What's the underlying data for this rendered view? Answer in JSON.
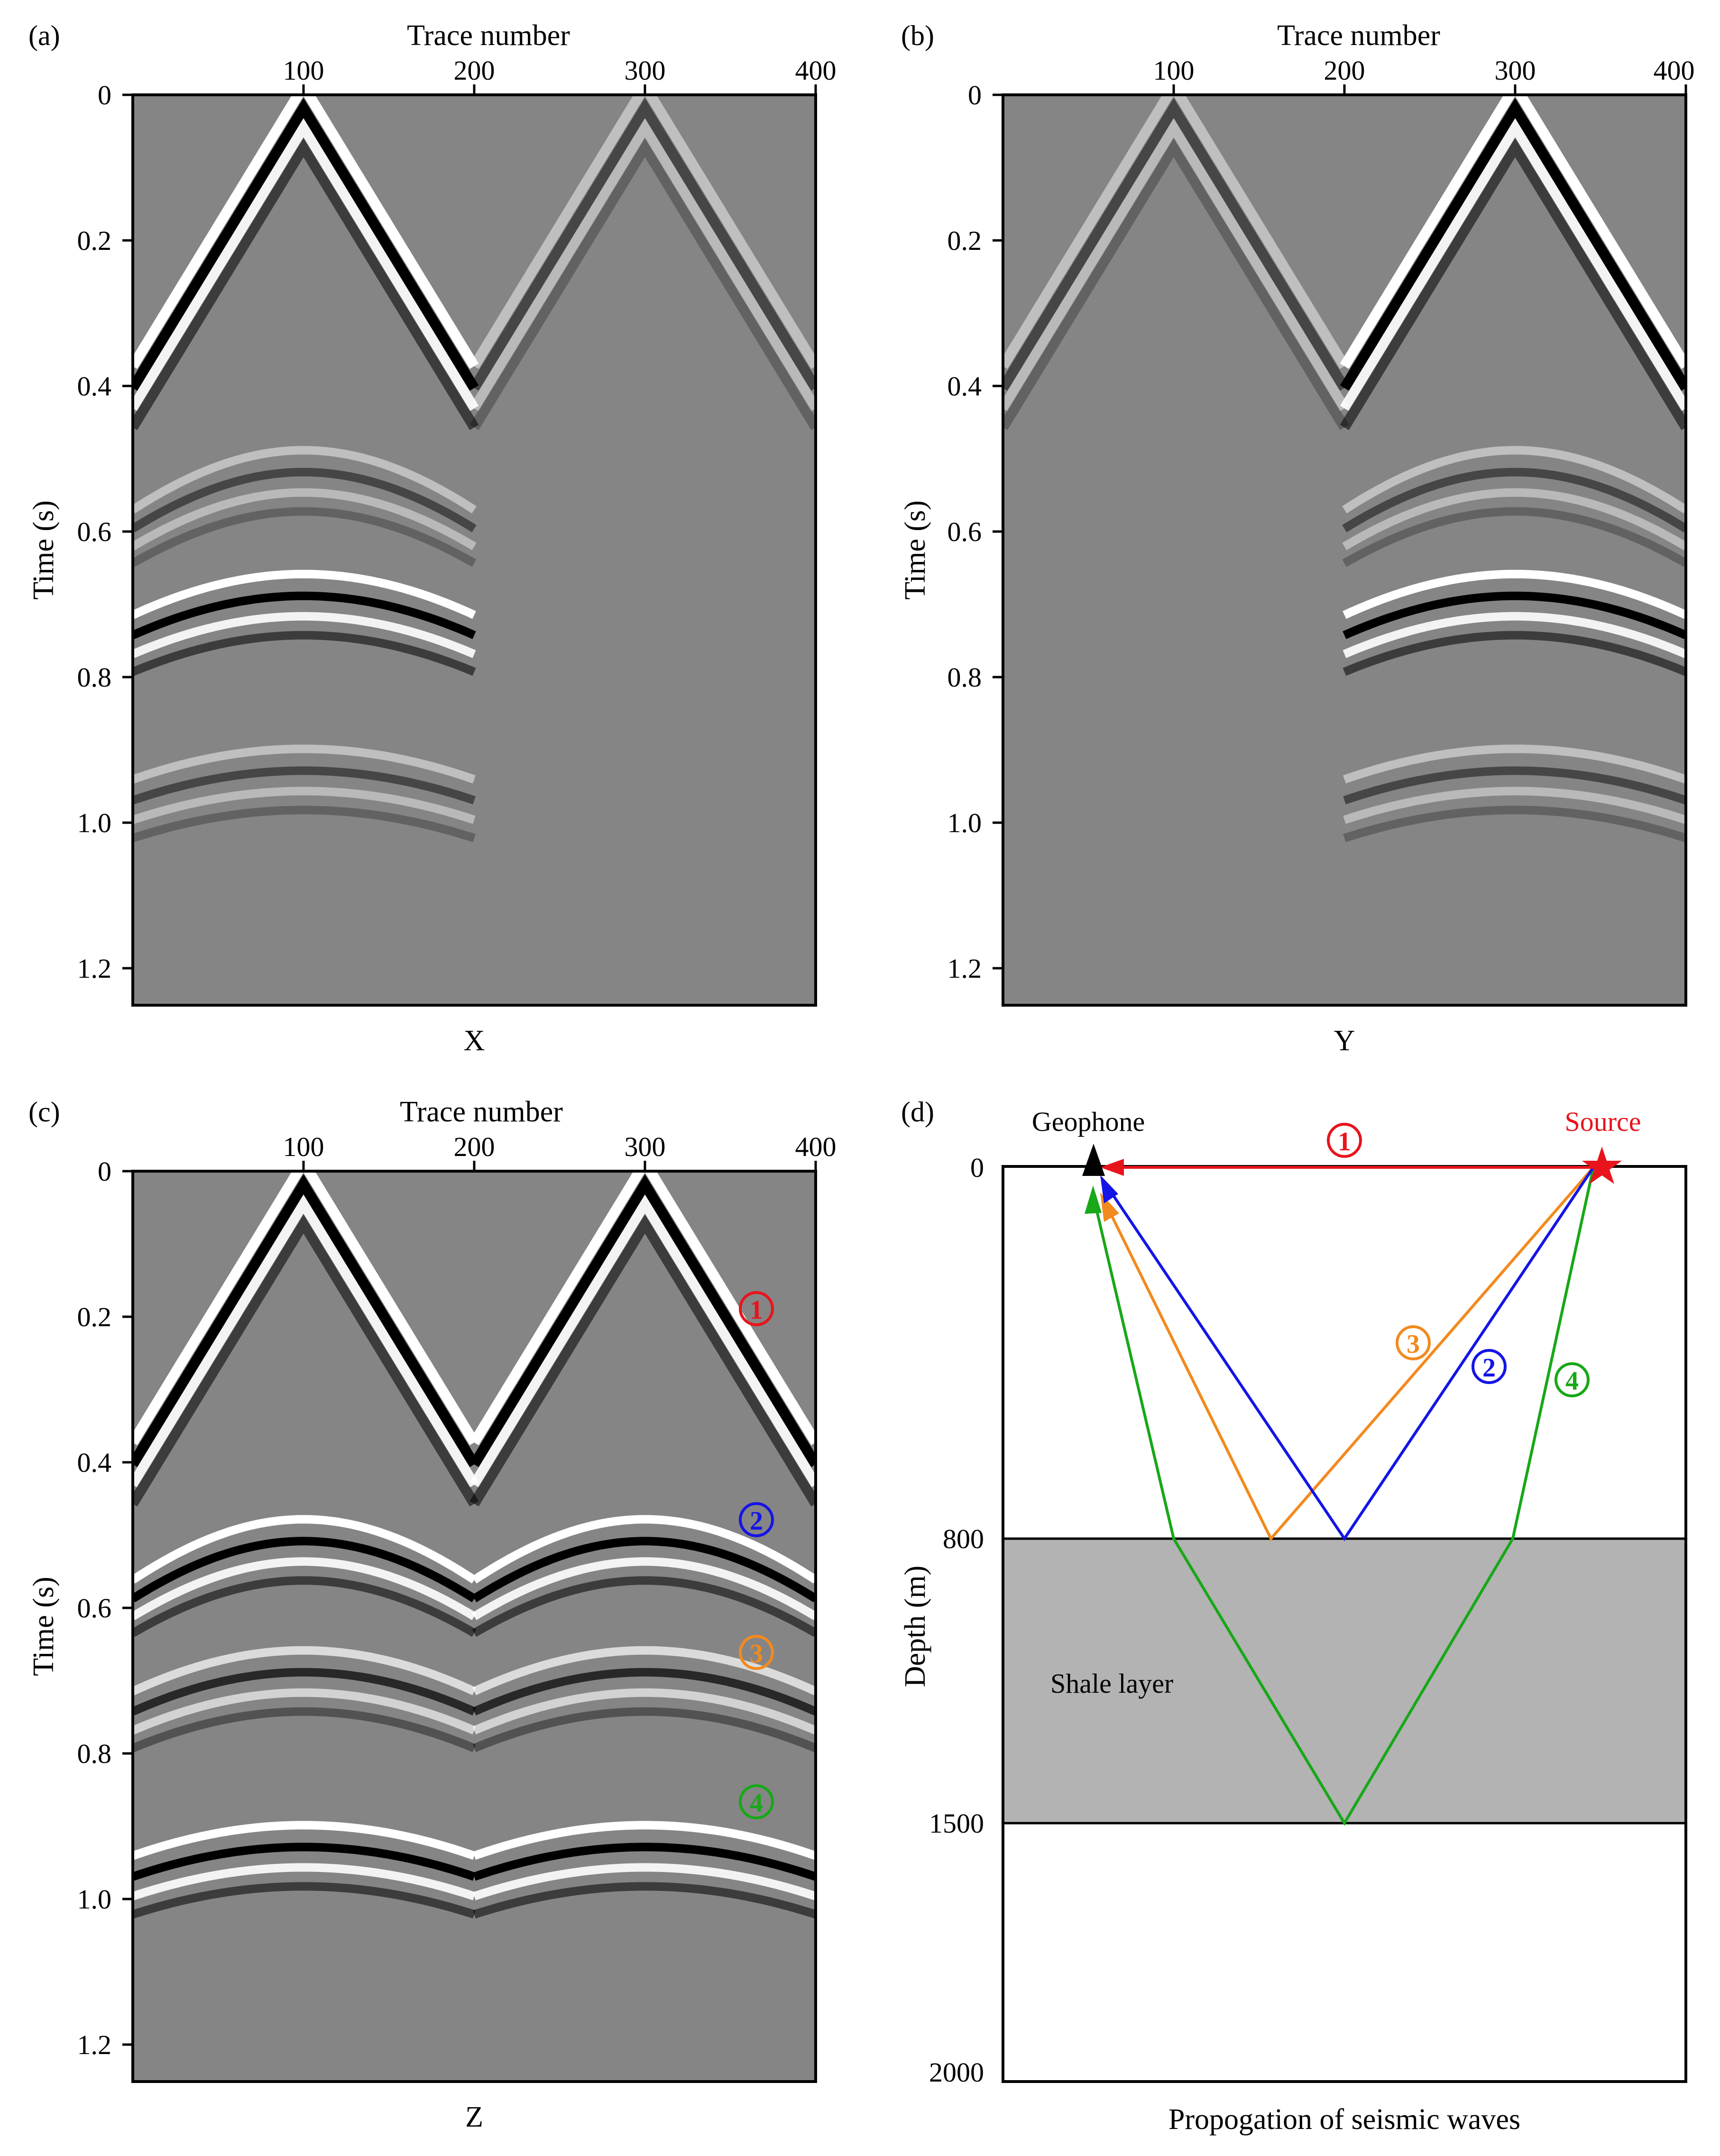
{
  "figure": {
    "panels": [
      {
        "id": "a",
        "label": "(a)",
        "top_axis_title": "Trace number",
        "x_ticks": [
          "100",
          "200",
          "300",
          "400"
        ],
        "y_label": "Time (s)",
        "y_ticks": [
          "0",
          "0.2",
          "0.4",
          "0.6",
          "0.8",
          "1.0",
          "1.2"
        ],
        "caption": "X"
      },
      {
        "id": "b",
        "label": "(b)",
        "top_axis_title": "Trace number",
        "x_ticks": [
          "100",
          "200",
          "300",
          "400"
        ],
        "y_label": "Time (s)",
        "y_ticks": [
          "0",
          "0.2",
          "0.4",
          "0.6",
          "0.8",
          "1.0",
          "1.2"
        ],
        "caption": "Y"
      },
      {
        "id": "c",
        "label": "(c)",
        "top_axis_title": "Trace number",
        "x_ticks": [
          "100",
          "200",
          "300",
          "400"
        ],
        "y_label": "Time (s)",
        "y_ticks": [
          "0",
          "0.2",
          "0.4",
          "0.6",
          "0.8",
          "1.0",
          "1.2"
        ],
        "caption": "Z",
        "event_markers": [
          "1",
          "2",
          "3",
          "4"
        ]
      },
      {
        "id": "d",
        "label": "(d)",
        "y_label": "Depth (m)",
        "y_ticks": [
          "0",
          "800",
          "1500",
          "2000"
        ],
        "caption": "Propogation of seismic waves",
        "geophone_label": "Geophone",
        "source_label": "Source",
        "layer_label": "Shale layer",
        "ray_labels": [
          "1",
          "2",
          "3",
          "4"
        ]
      }
    ],
    "colors": {
      "ray1": "#e8141c",
      "ray2": "#1414e6",
      "ray3": "#f28a1e",
      "ray4": "#18a818",
      "shale": "#b3b3b3",
      "gather_bg": "#858585"
    }
  },
  "chart_data": [
    {
      "type": "heatmap",
      "title": "(a)",
      "component": "X",
      "xlabel": "Trace number",
      "ylabel": "Time (s)",
      "xlim": [
        0,
        400
      ],
      "ylim": [
        1.25,
        0
      ],
      "x_ticks": [
        100,
        200,
        300,
        400
      ],
      "y_ticks": [
        0,
        0.2,
        0.4,
        0.6,
        0.8,
        1.0,
        1.2
      ],
      "sources_at_trace": [
        100,
        300
      ],
      "events": [
        {
          "name": "direct wave (src 100)",
          "apex_time": 0.0,
          "apex_trace": 100,
          "amplitude": "strong"
        },
        {
          "name": "direct wave (src 300)",
          "apex_time": 0.0,
          "apex_trace": 300,
          "amplitude": "weak"
        },
        {
          "name": "reflection",
          "apex_time": 0.5,
          "apex_trace": 100,
          "amplitude": "weak"
        },
        {
          "name": "reflection",
          "apex_time": 0.67,
          "apex_trace": 100,
          "amplitude": "strong"
        },
        {
          "name": "reflection",
          "apex_time": 0.91,
          "apex_trace": 100,
          "amplitude": "weak"
        }
      ]
    },
    {
      "type": "heatmap",
      "title": "(b)",
      "component": "Y",
      "xlabel": "Trace number",
      "ylabel": "Time (s)",
      "xlim": [
        0,
        400
      ],
      "ylim": [
        1.25,
        0
      ],
      "x_ticks": [
        100,
        200,
        300,
        400
      ],
      "y_ticks": [
        0,
        0.2,
        0.4,
        0.6,
        0.8,
        1.0,
        1.2
      ],
      "sources_at_trace": [
        100,
        300
      ],
      "events": [
        {
          "name": "direct wave (src 100)",
          "apex_time": 0.0,
          "apex_trace": 100,
          "amplitude": "weak"
        },
        {
          "name": "direct wave (src 300)",
          "apex_time": 0.0,
          "apex_trace": 300,
          "amplitude": "strong"
        },
        {
          "name": "reflection",
          "apex_time": 0.5,
          "apex_trace": 300,
          "amplitude": "weak"
        },
        {
          "name": "reflection",
          "apex_time": 0.67,
          "apex_trace": 300,
          "amplitude": "strong"
        },
        {
          "name": "reflection",
          "apex_time": 0.91,
          "apex_trace": 300,
          "amplitude": "weak"
        }
      ]
    },
    {
      "type": "heatmap",
      "title": "(c)",
      "component": "Z",
      "xlabel": "Trace number",
      "ylabel": "Time (s)",
      "xlim": [
        0,
        400
      ],
      "ylim": [
        1.25,
        0
      ],
      "x_ticks": [
        100,
        200,
        300,
        400
      ],
      "y_ticks": [
        0,
        0.2,
        0.4,
        0.6,
        0.8,
        1.0,
        1.2
      ],
      "sources_at_trace": [
        100,
        300
      ],
      "events": [
        {
          "name": "1 direct wave",
          "apex_time": 0.0,
          "amplitude": "strong",
          "marker_time": 0.19
        },
        {
          "name": "2 reflection",
          "apex_time": 0.49,
          "amplitude": "strong",
          "marker_time": 0.47
        },
        {
          "name": "3 reflection",
          "apex_time": 0.67,
          "amplitude": "medium",
          "marker_time": 0.66
        },
        {
          "name": "4 reflection",
          "apex_time": 0.91,
          "amplitude": "strong",
          "marker_time": 0.86
        }
      ]
    },
    {
      "type": "diagram",
      "title": "(d)",
      "xlabel": "Propogation of seismic waves",
      "ylabel": "Depth (m)",
      "ylim": [
        2000,
        0
      ],
      "y_ticks": [
        0,
        800,
        1500,
        2000
      ],
      "shale_layer_depth": [
        800,
        1500
      ],
      "rays": [
        {
          "id": "1",
          "path": "direct",
          "color": "#e8141c"
        },
        {
          "id": "2",
          "path": "reflect at 800 m",
          "color": "#1414e6"
        },
        {
          "id": "3",
          "path": "reflect at 800 m",
          "color": "#f28a1e"
        },
        {
          "id": "4",
          "path": "reflect at 1500 m",
          "color": "#18a818"
        }
      ]
    }
  ]
}
